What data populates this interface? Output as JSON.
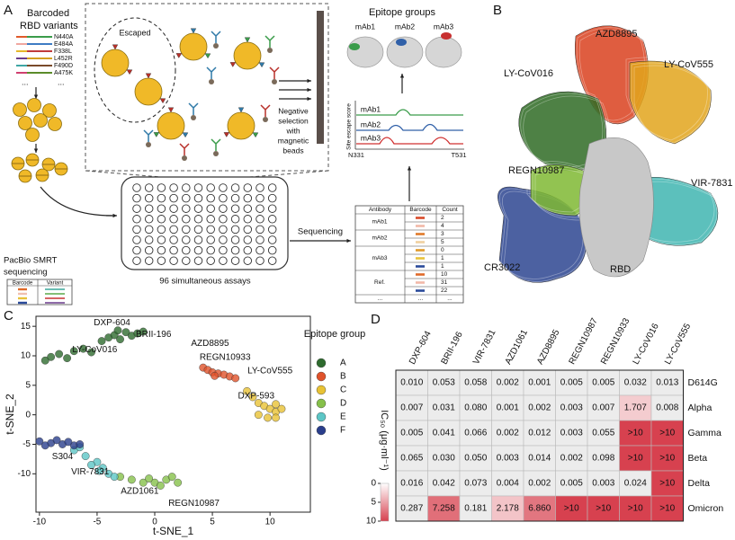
{
  "panel_labels": [
    "A",
    "B",
    "C",
    "D"
  ],
  "panel_a": {
    "library_title": [
      "Barcoded",
      "RBD variants"
    ],
    "mutations": [
      "N440A",
      "E484A",
      "F338L",
      "L452R",
      "F490D",
      "A475K"
    ],
    "library_more": [
      "...",
      "..."
    ],
    "escaped": "Escaped",
    "selection": [
      "Negative",
      "selection",
      "with",
      "magnetic",
      "beads"
    ],
    "pacbio": [
      "PacBio SMRT",
      "sequencing"
    ],
    "pacbio_table": {
      "header": [
        "Barcode",
        "Variant"
      ]
    },
    "plate_caption": "96 simultaneous assays",
    "sequencing": "Sequencing",
    "epitope_title": "Epitope groups",
    "antibodies": [
      "mAb1",
      "mAb2",
      "mAb3"
    ],
    "escape_axis": "Site escape score",
    "site_range": [
      "N331",
      "T531"
    ],
    "count_table": {
      "header": [
        "Antibody",
        "Barcode",
        "Count"
      ],
      "groups": [
        {
          "antibody": "mAb1",
          "counts": [
            2,
            4
          ]
        },
        {
          "antibody": "mAb2",
          "counts": [
            3,
            5
          ]
        },
        {
          "antibody": "mAb3",
          "counts": [
            0,
            1,
            1
          ]
        },
        {
          "antibody": "Ref.",
          "counts": [
            10,
            31,
            22
          ]
        }
      ],
      "last_row": [
        "...",
        "...",
        "..."
      ]
    }
  },
  "panel_b": {
    "labels": [
      {
        "text": "AZD8895",
        "color": "#d9411e"
      },
      {
        "text": "LY-CoV016",
        "color": "#2f6b24"
      },
      {
        "text": "LY-CoV555",
        "color": "#e2a51c"
      },
      {
        "text": "REGN10987",
        "color": "#7fb832"
      },
      {
        "text": "VIR-7831",
        "color": "#3fb5b0"
      },
      {
        "text": "CR3022",
        "color": "#2d4590"
      },
      {
        "text": "RBD",
        "color": "#9a9a9a"
      }
    ]
  },
  "chart_data": {
    "type": "scatter",
    "xlabel": "t-SNE_1",
    "ylabel": "t-SNE_2",
    "xlim": [
      -10.3,
      13.5
    ],
    "ylim": [
      -16.5,
      16.7
    ],
    "xticks": [
      -10,
      -5,
      0,
      5,
      10
    ],
    "yticks": [
      -10,
      -5,
      0,
      5,
      10,
      15
    ],
    "legend_title": "Epitope group",
    "series": [
      {
        "name": "A",
        "color": "#2e6b2e",
        "x": [
          -9.5,
          -9,
          -8.3,
          -7.6,
          -7,
          -6.2,
          -5.5,
          -4.6,
          -4,
          -3.5,
          -3,
          -2.5,
          -2,
          -1.5,
          -1,
          -3.2
        ],
        "y": [
          9.2,
          9.8,
          10.3,
          9.6,
          10.8,
          11.2,
          10.6,
          12.5,
          13.1,
          13.5,
          12.8,
          14,
          13.4,
          13.8,
          14.1,
          14.3
        ]
      },
      {
        "name": "B",
        "color": "#e0522b",
        "x": [
          4.2,
          4.6,
          5,
          5.5,
          6,
          6.5,
          7,
          5.2
        ],
        "y": [
          8,
          7.6,
          7.2,
          7,
          6.8,
          6.5,
          6.2,
          6.6
        ]
      },
      {
        "name": "C",
        "color": "#e8c234",
        "x": [
          8,
          8.5,
          9,
          9.5,
          10,
          10.5,
          11,
          9,
          9.8,
          10.5,
          10.5
        ],
        "y": [
          4,
          3,
          2,
          1.5,
          1,
          0.5,
          1,
          0,
          -0.5,
          -0.5,
          1.8
        ]
      },
      {
        "name": "D",
        "color": "#86c04a",
        "x": [
          -3,
          -2,
          -1,
          0,
          1,
          2,
          -0.5,
          1.5,
          0.5
        ],
        "y": [
          -10.5,
          -11,
          -11.5,
          -11.5,
          -11,
          -11.5,
          -10.8,
          -10.5,
          -12
        ]
      },
      {
        "name": "E",
        "color": "#5cc6c6",
        "x": [
          -7,
          -6,
          -5,
          -4.5,
          -4,
          -5.5,
          -3.5,
          -6.5,
          -4.8
        ],
        "y": [
          -6,
          -7,
          -8,
          -9,
          -10,
          -8.5,
          -10.5,
          -5.5,
          -9.5
        ]
      },
      {
        "name": "F",
        "color": "#2a3e8c",
        "x": [
          -10,
          -9,
          -8,
          -7,
          -6.5,
          -9.5,
          -8.5,
          -7.5
        ],
        "y": [
          -4.5,
          -4.8,
          -5,
          -5.2,
          -5,
          -5.2,
          -4.3,
          -4.6
        ]
      }
    ],
    "annotations": [
      {
        "text": "DXP-604",
        "x": -3.7,
        "y": 15.6
      },
      {
        "text": "BRII-196",
        "x": -0.1,
        "y": 13.6
      },
      {
        "text": "LY-CoV016",
        "x": -5.2,
        "y": 11
      },
      {
        "text": "AZD8895",
        "x": 4.8,
        "y": 12.1
      },
      {
        "text": "REGN10933",
        "x": 6.1,
        "y": 9.7
      },
      {
        "text": "LY-CoV555",
        "x": 10,
        "y": 7.4
      },
      {
        "text": "DXP-593",
        "x": 8.8,
        "y": 3.2
      },
      {
        "text": "S304",
        "x": -8,
        "y": -7.1
      },
      {
        "text": "VIR-7831",
        "x": -5.6,
        "y": -9.7
      },
      {
        "text": "AZD1061",
        "x": -1.3,
        "y": -13
      },
      {
        "text": "REGN10987",
        "x": 3.4,
        "y": -15
      }
    ]
  },
  "panel_d": {
    "columns": [
      "DXP-604",
      "BRII-196",
      "VIR-7831",
      "AZD1061",
      "AZD8895",
      "REGN10987",
      "REGN10933",
      "LY-CoV016",
      "LY-CoV555"
    ],
    "rows": [
      {
        "name": "D614G",
        "cells": [
          "0.010",
          "0.053",
          "0.058",
          "0.002",
          "0.001",
          "0.005",
          "0.005",
          "0.032",
          "0.013"
        ]
      },
      {
        "name": "Alpha",
        "cells": [
          "0.007",
          "0.031",
          "0.080",
          "0.001",
          "0.002",
          "0.003",
          "0.007",
          "1.707",
          "0.008"
        ]
      },
      {
        "name": "Gamma",
        "cells": [
          "0.005",
          "0.041",
          "0.066",
          "0.002",
          "0.012",
          "0.003",
          "0.055",
          ">10",
          ">10"
        ]
      },
      {
        "name": "Beta",
        "cells": [
          "0.065",
          "0.030",
          "0.050",
          "0.003",
          "0.014",
          "0.002",
          "0.098",
          ">10",
          ">10"
        ]
      },
      {
        "name": "Delta",
        "cells": [
          "0.016",
          "0.042",
          "0.073",
          "0.004",
          "0.002",
          "0.005",
          "0.003",
          "0.024",
          ">10"
        ]
      },
      {
        "name": "Omicron",
        "cells": [
          "0.287",
          "7.258",
          "0.181",
          "2.178",
          "6.860",
          ">10",
          ">10",
          ">10",
          ">10"
        ]
      }
    ],
    "colorbar": {
      "label": "IC₅₀ (μg·ml⁻¹)",
      "range": [
        0,
        10
      ],
      "ticks": [
        0,
        5,
        10
      ],
      "low_color": "#ffffff",
      "high_color": "#d7414f"
    }
  }
}
